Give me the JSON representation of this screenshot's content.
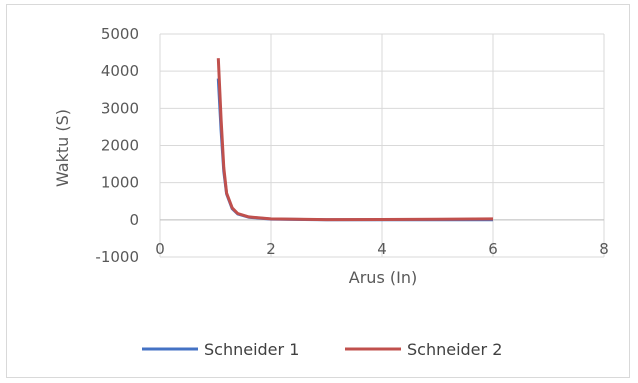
{
  "chart_data": {
    "type": "line",
    "title": "",
    "xlabel": "Arus (In)",
    "ylabel": "Waktu (S)",
    "xlim": [
      0,
      8
    ],
    "ylim": [
      -1000,
      5000
    ],
    "x_ticks": [
      "0",
      "2",
      "4",
      "6",
      "8"
    ],
    "y_ticks": [
      "5000",
      "4000",
      "3000",
      "2000",
      "1000",
      "0",
      "-1000"
    ],
    "grid": true,
    "legend_position": "bottom",
    "series": [
      {
        "name": "Schneider 1",
        "color": "#4472c4",
        "points": [
          [
            1.05,
            3800
          ],
          [
            1.1,
            2400
          ],
          [
            1.15,
            1300
          ],
          [
            1.2,
            700
          ],
          [
            1.3,
            300
          ],
          [
            1.4,
            160
          ],
          [
            1.6,
            70
          ],
          [
            2,
            20
          ],
          [
            3,
            0
          ],
          [
            4,
            0
          ],
          [
            5,
            0
          ],
          [
            6,
            0
          ]
        ]
      },
      {
        "name": "Schneider 2",
        "color": "#c0504d",
        "points": [
          [
            1.05,
            4350
          ],
          [
            1.1,
            2700
          ],
          [
            1.15,
            1400
          ],
          [
            1.2,
            720
          ],
          [
            1.3,
            320
          ],
          [
            1.4,
            170
          ],
          [
            1.6,
            80
          ],
          [
            2,
            25
          ],
          [
            3,
            5
          ],
          [
            4,
            10
          ],
          [
            5,
            15
          ],
          [
            6,
            25
          ]
        ]
      }
    ]
  }
}
